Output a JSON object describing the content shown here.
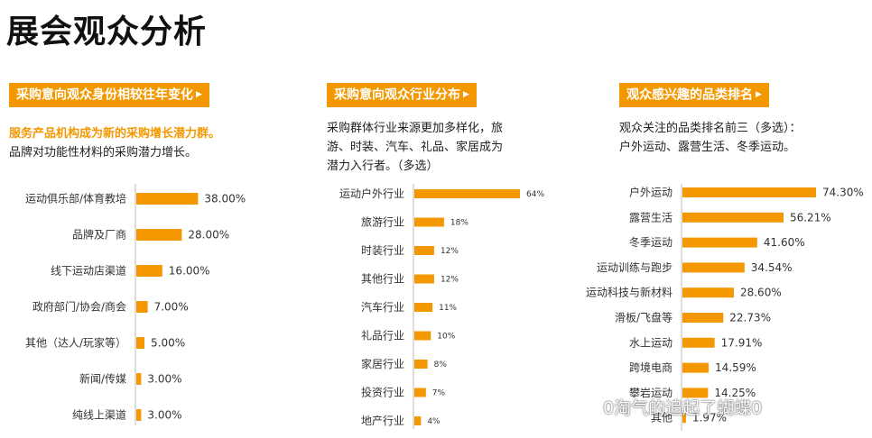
{
  "page_title": "展会观众分析",
  "watermark": "0淘气的追起了蝴蝶0",
  "colors": {
    "accent": "#f39800",
    "axis": "#bbbbbb",
    "text": "#333333"
  },
  "panels": [
    {
      "header": "采购意向观众身份相较往年变化",
      "desc_highlight": "服务产品机构成为新的采购增长潜力群。",
      "desc_lines": [
        "品牌对功能性材料的采购潜力增长。"
      ]
    },
    {
      "header": "采购意向观众行业分布",
      "desc_highlight": "",
      "desc_lines": [
        "采购群体行业来源更加多样化，旅",
        "游、时装、汽车、礼品、家居成为",
        "潜力入行者。（多选）"
      ]
    },
    {
      "header": "观众感兴趣的品类排名",
      "desc_highlight": "",
      "desc_lines": [
        "观众关注的品类排名前三（多选）：",
        "户外运动、露营生活、冬季运动。"
      ]
    }
  ],
  "chart_data": [
    {
      "type": "bar",
      "orientation": "horizontal",
      "title": "采购意向观众身份相较往年变化",
      "categories": [
        "运动俱乐部/体育教培",
        "品牌及厂商",
        "线下运动店渠道",
        "政府部门/协会/商会",
        "其他（达人/玩家等）",
        "新闻/传媒",
        "纯线上渠道"
      ],
      "values": [
        38,
        28,
        16,
        7,
        5,
        3,
        3
      ],
      "value_labels": [
        "38.00%",
        "28.00%",
        "16.00%",
        "7.00%",
        "5.00%",
        "3.00%",
        "3.00%"
      ],
      "xlim": [
        0,
        40
      ]
    },
    {
      "type": "bar",
      "orientation": "horizontal",
      "title": "采购意向观众行业分布",
      "categories": [
        "运动户外行业",
        "旅游行业",
        "时装行业",
        "其他行业",
        "汽车行业",
        "礼品行业",
        "家居行业",
        "投资行业",
        "地产行业"
      ],
      "values": [
        64,
        18,
        12,
        12,
        11,
        10,
        8,
        7,
        4
      ],
      "value_labels": [
        "64%",
        "18%",
        "12%",
        "12%",
        "11%",
        "10%",
        "8%",
        "7%",
        "4%"
      ],
      "xlim": [
        0,
        64
      ]
    },
    {
      "type": "bar",
      "orientation": "horizontal",
      "title": "观众感兴趣的品类排名",
      "categories": [
        "户外运动",
        "露营生活",
        "冬季运动",
        "运动训练与跑步",
        "运动科技与新材料",
        "滑板/飞盘等",
        "水上运动",
        "跨境电商",
        "攀岩运动",
        "其他"
      ],
      "values": [
        74.3,
        56.21,
        41.6,
        34.54,
        28.6,
        22.73,
        17.91,
        14.59,
        14.25,
        1.97
      ],
      "value_labels": [
        "74.30%",
        "56.21%",
        "41.60%",
        "34.54%",
        "28.60%",
        "22.73%",
        "17.91%",
        "14.59%",
        "14.25%",
        "1.97%"
      ],
      "xlim": [
        0,
        74.3
      ]
    }
  ]
}
